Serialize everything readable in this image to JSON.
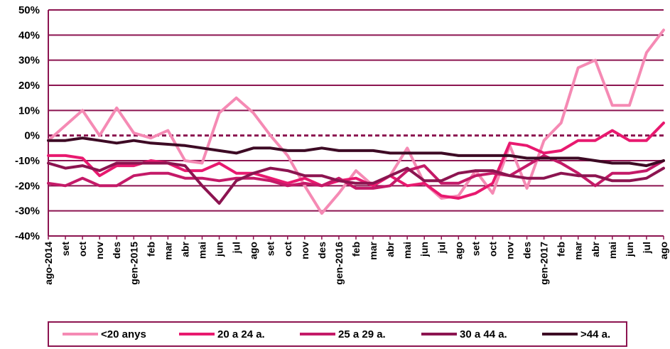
{
  "chart_data": {
    "type": "line",
    "ylim": [
      -40,
      50
    ],
    "yticks": [
      -40,
      -30,
      -20,
      -10,
      0,
      10,
      20,
      30,
      40,
      50
    ],
    "ytick_labels": [
      "-40%",
      "-30%",
      "-20%",
      "-10%",
      "0%",
      "10%",
      "20%",
      "30%",
      "40%",
      "50%"
    ],
    "grid": true,
    "zero_line": "dashed",
    "legend_position": "bottom",
    "categories": [
      "ago-2014",
      "set",
      "oct",
      "nov",
      "des",
      "gen-2015",
      "feb",
      "mar",
      "abr",
      "mai",
      "jun",
      "jul",
      "ago",
      "set",
      "oct",
      "nov",
      "des",
      "gen-2016",
      "feb",
      "mar",
      "abr",
      "mai",
      "jun",
      "jul",
      "ago",
      "set",
      "oct",
      "nov",
      "des",
      "gen-2017",
      "feb",
      "mar",
      "abr",
      "mai",
      "jun",
      "jul",
      "ago"
    ],
    "series": [
      {
        "name": "<20 anys",
        "color": "#f58ab4",
        "values": [
          -2,
          4,
          10,
          0,
          11,
          1,
          -1,
          2,
          -10,
          -11,
          9,
          15,
          9,
          0,
          -8,
          -20,
          -31,
          -23,
          -14,
          -20,
          -16,
          -5,
          -19,
          -25,
          -24,
          -14,
          -23,
          -4,
          -21,
          -2,
          5,
          27,
          30,
          12,
          12,
          33,
          42
        ]
      },
      {
        "name": "20 a 24 a.",
        "color": "#e8196f",
        "values": [
          -8,
          -8,
          -9,
          -16,
          -12,
          -12,
          -10,
          -11,
          -14,
          -14,
          -11,
          -15,
          -15,
          -17,
          -19,
          -17,
          -20,
          -18,
          -17,
          -20,
          -16,
          -20,
          -19,
          -24,
          -25,
          -23,
          -19,
          -3,
          -4,
          -7,
          -6,
          -2,
          -2,
          2,
          -2,
          -2,
          5
        ]
      },
      {
        "name": "25 a 29 a.",
        "color": "#c41a68",
        "values": [
          -19,
          -20,
          -17,
          -20,
          -20,
          -16,
          -15,
          -15,
          -17,
          -17,
          -18,
          -17,
          -17,
          -18,
          -20,
          -19,
          -20,
          -17,
          -21,
          -21,
          -20,
          -14,
          -12,
          -19,
          -19,
          -16,
          -15,
          -16,
          -12,
          -8,
          -11,
          -15,
          -20,
          -15,
          -15,
          -14,
          -10
        ]
      },
      {
        "name": "30 a 44 a.",
        "color": "#8c1450",
        "values": [
          -11,
          -13,
          -12,
          -14,
          -11,
          -11,
          -11,
          -11,
          -12,
          -20,
          -27,
          -18,
          -15,
          -13,
          -14,
          -16,
          -16,
          -18,
          -19,
          -19,
          -16,
          -13,
          -18,
          -18,
          -15,
          -14,
          -14,
          -16,
          -17,
          -17,
          -15,
          -16,
          -16,
          -18,
          -18,
          -17,
          -13
        ]
      },
      {
        "name": ">44 a.",
        "color": "#3d0a24",
        "values": [
          -2,
          -2,
          -1,
          -2,
          -3,
          -2,
          -3,
          -3.5,
          -4,
          -5,
          -6,
          -7,
          -5,
          -5,
          -6,
          -6,
          -5,
          -6,
          -6,
          -6,
          -7,
          -7,
          -7,
          -7,
          -8,
          -8,
          -8,
          -8,
          -9,
          -9,
          -9,
          -9,
          -10,
          -11,
          -11,
          -12,
          -10
        ]
      }
    ]
  }
}
